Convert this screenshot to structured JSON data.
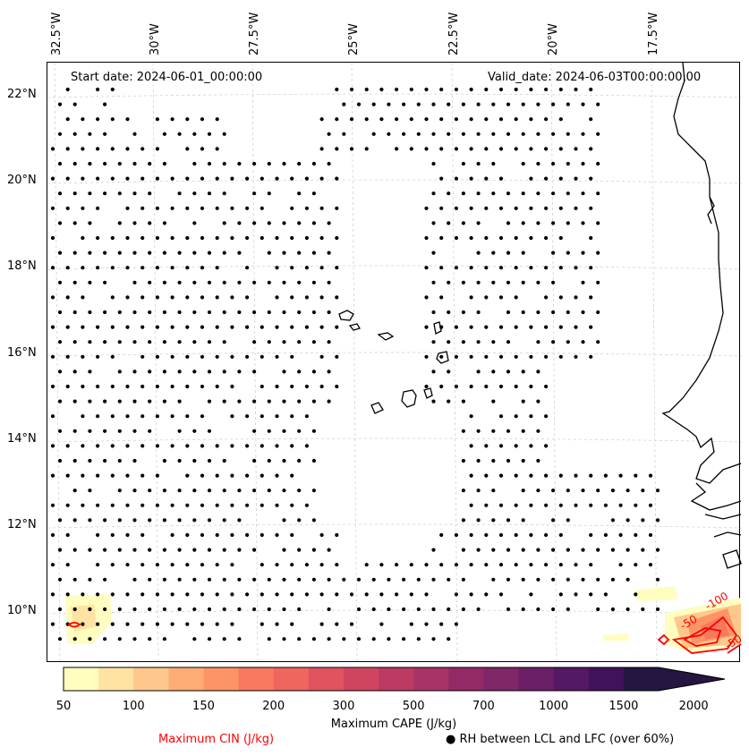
{
  "map": {
    "start_date": "Start date: 2024-06-01_00:00:00",
    "valid_date": "Valid_date: 2024-06-03T00:00:00.00",
    "lon_labels": [
      "32.5°W",
      "30°W",
      "27.5°W",
      "25°W",
      "22.5°W",
      "20°W",
      "17.5°W"
    ],
    "lat_labels": [
      "22°N",
      "20°N",
      "18°N",
      "16°N",
      "14°N",
      "12°N",
      "10°N"
    ],
    "cin_contour_labels": [
      "-100",
      "-50",
      "-50"
    ],
    "colors": {
      "coastline": "#000000",
      "cin_contour": "#ff0000",
      "gridline": "#cccccc"
    }
  },
  "colorbar": {
    "title": "Maximum CAPE (J/kg)",
    "tick_labels": [
      "50",
      "100",
      "150",
      "200",
      "300",
      "500",
      "700",
      "1000",
      "1500",
      "2000"
    ],
    "colors": [
      "#fffdbf",
      "#fee3a3",
      "#fec88c",
      "#feac75",
      "#fd9467",
      "#f8795f",
      "#ee665e",
      "#e0535f",
      "#d04460",
      "#bd3a63",
      "#a83366",
      "#932a67",
      "#7f2767",
      "#6a1f66",
      "#551864",
      "#3f135c",
      "#241641"
    ]
  },
  "legend": {
    "cin_label": "Maximum CIN (J/kg)",
    "cin_color": "#ff0000",
    "rh_label": "● RH between LCL and LFC (over 60%)"
  }
}
